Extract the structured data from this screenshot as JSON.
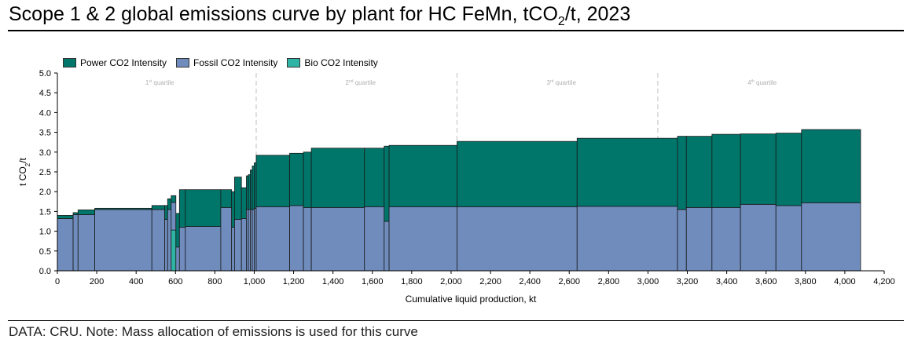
{
  "header": {
    "title_main": "Scope 1 & 2 global emissions curve by plant for HC FeMn, tCO",
    "title_sub": "2",
    "title_tail": "/t, 2023"
  },
  "footer": {
    "note": "DATA: CRU.  Note: Mass allocation of emissions is used for this curve"
  },
  "chart_data": {
    "type": "bar",
    "subtype": "stacked variable-width cost curve",
    "xlabel": "Cumulative liquid production, kt",
    "ylabel_main": "t CO",
    "ylabel_sub": "2",
    "ylabel_tail": "/t",
    "xlim": [
      0,
      4200
    ],
    "ylim": [
      0,
      5
    ],
    "xticks": [
      0,
      200,
      400,
      600,
      800,
      1000,
      1200,
      1400,
      1600,
      1800,
      2000,
      2200,
      2400,
      2600,
      2800,
      3000,
      3200,
      3400,
      3600,
      3800,
      4000,
      4200
    ],
    "xtick_labels": [
      "0",
      "200",
      "400",
      "600",
      "800",
      "1,000",
      "1,200",
      "1,400",
      "1,600",
      "1,800",
      "2,000",
      "2,200",
      "2,400",
      "2,600",
      "2,800",
      "3,000",
      "3,200",
      "3,400",
      "3,600",
      "3,800",
      "4,000",
      "4,200"
    ],
    "yticks": [
      0,
      0.5,
      1,
      1.5,
      2,
      2.5,
      3,
      3.5,
      4,
      4.5,
      5
    ],
    "ytick_labels": [
      "0.0",
      "0.5",
      "1.0",
      "1.5",
      "2.0",
      "2.5",
      "3.0",
      "3.5",
      "4.0",
      "4.5",
      "5.0"
    ],
    "legend": [
      {
        "name": "Power CO2 Intensity",
        "color": "#00766b"
      },
      {
        "name": "Fossil CO2 Intensity",
        "color": "#6f8cbd"
      },
      {
        "name": "Bio CO2 Intensity",
        "color": "#2fb3a4"
      }
    ],
    "quartile_dividers": [
      1010,
      2030,
      3050
    ],
    "quartiles": [
      {
        "label": "1",
        "sup": "st",
        "word": " quartile",
        "x": 520
      },
      {
        "label": "2",
        "sup": "nd",
        "word": " quartile",
        "x": 1540
      },
      {
        "label": "3",
        "sup": "rd",
        "word": " quartile",
        "x": 2560
      },
      {
        "label": "4",
        "sup": "th",
        "word": " quartile",
        "x": 3580
      }
    ],
    "plants": [
      {
        "x0": 0,
        "x1": 80,
        "fossil": 1.32,
        "power": 0.08,
        "bio": 0
      },
      {
        "x0": 80,
        "x1": 105,
        "fossil": 1.42,
        "power": 0.05,
        "bio": 0
      },
      {
        "x0": 105,
        "x1": 190,
        "fossil": 1.42,
        "power": 0.12,
        "bio": 0
      },
      {
        "x0": 190,
        "x1": 480,
        "fossil": 1.55,
        "power": 0.03,
        "bio": 0
      },
      {
        "x0": 480,
        "x1": 545,
        "fossil": 1.55,
        "power": 0.1,
        "bio": 0
      },
      {
        "x0": 545,
        "x1": 560,
        "fossil": 1.3,
        "power": 0.35,
        "bio": 0
      },
      {
        "x0": 560,
        "x1": 578,
        "fossil": 1.55,
        "power": 0.27,
        "bio": 0
      },
      {
        "x0": 578,
        "x1": 602,
        "fossil": 0.7,
        "power": 0.17,
        "bio": 1.03
      },
      {
        "x0": 602,
        "x1": 620,
        "fossil": 0.6,
        "power": 0.85,
        "bio": 0
      },
      {
        "x0": 620,
        "x1": 650,
        "fossil": 1.1,
        "power": 0.95,
        "bio": 0
      },
      {
        "x0": 650,
        "x1": 830,
        "fossil": 1.12,
        "power": 0.93,
        "bio": 0
      },
      {
        "x0": 830,
        "x1": 885,
        "fossil": 1.6,
        "power": 0.45,
        "bio": 0
      },
      {
        "x0": 885,
        "x1": 900,
        "fossil": 1.1,
        "power": 0.9,
        "bio": 0
      },
      {
        "x0": 900,
        "x1": 935,
        "fossil": 1.3,
        "power": 1.07,
        "bio": 0
      },
      {
        "x0": 935,
        "x1": 960,
        "fossil": 1.32,
        "power": 0.78,
        "bio": 0
      },
      {
        "x0": 960,
        "x1": 970,
        "fossil": 1.55,
        "power": 0.85,
        "bio": 0
      },
      {
        "x0": 970,
        "x1": 980,
        "fossil": 1.55,
        "power": 0.88,
        "bio": 0
      },
      {
        "x0": 980,
        "x1": 990,
        "fossil": 1.55,
        "power": 1.0,
        "bio": 0
      },
      {
        "x0": 990,
        "x1": 1000,
        "fossil": 1.55,
        "power": 1.1,
        "bio": 0
      },
      {
        "x0": 1000,
        "x1": 1010,
        "fossil": 1.58,
        "power": 1.15,
        "bio": 0
      },
      {
        "x0": 1010,
        "x1": 1180,
        "fossil": 1.62,
        "power": 1.3,
        "bio": 0
      },
      {
        "x0": 1180,
        "x1": 1250,
        "fossil": 1.65,
        "power": 1.32,
        "bio": 0
      },
      {
        "x0": 1250,
        "x1": 1290,
        "fossil": 1.6,
        "power": 1.4,
        "bio": 0
      },
      {
        "x0": 1290,
        "x1": 1560,
        "fossil": 1.6,
        "power": 1.5,
        "bio": 0
      },
      {
        "x0": 1560,
        "x1": 1660,
        "fossil": 1.62,
        "power": 1.48,
        "bio": 0
      },
      {
        "x0": 1660,
        "x1": 1685,
        "fossil": 1.25,
        "power": 1.9,
        "bio": 0
      },
      {
        "x0": 1685,
        "x1": 2030,
        "fossil": 1.62,
        "power": 1.55,
        "bio": 0
      },
      {
        "x0": 2030,
        "x1": 2640,
        "fossil": 1.62,
        "power": 1.65,
        "bio": 0
      },
      {
        "x0": 2640,
        "x1": 3150,
        "fossil": 1.63,
        "power": 1.72,
        "bio": 0
      },
      {
        "x0": 3150,
        "x1": 3195,
        "fossil": 1.55,
        "power": 1.85,
        "bio": 0
      },
      {
        "x0": 3195,
        "x1": 3325,
        "fossil": 1.6,
        "power": 1.8,
        "bio": 0
      },
      {
        "x0": 3325,
        "x1": 3470,
        "fossil": 1.6,
        "power": 1.85,
        "bio": 0
      },
      {
        "x0": 3470,
        "x1": 3650,
        "fossil": 1.68,
        "power": 1.78,
        "bio": 0
      },
      {
        "x0": 3650,
        "x1": 3780,
        "fossil": 1.65,
        "power": 1.83,
        "bio": 0
      },
      {
        "x0": 3780,
        "x1": 4080,
        "fossil": 1.72,
        "power": 1.85,
        "bio": 0
      }
    ]
  }
}
